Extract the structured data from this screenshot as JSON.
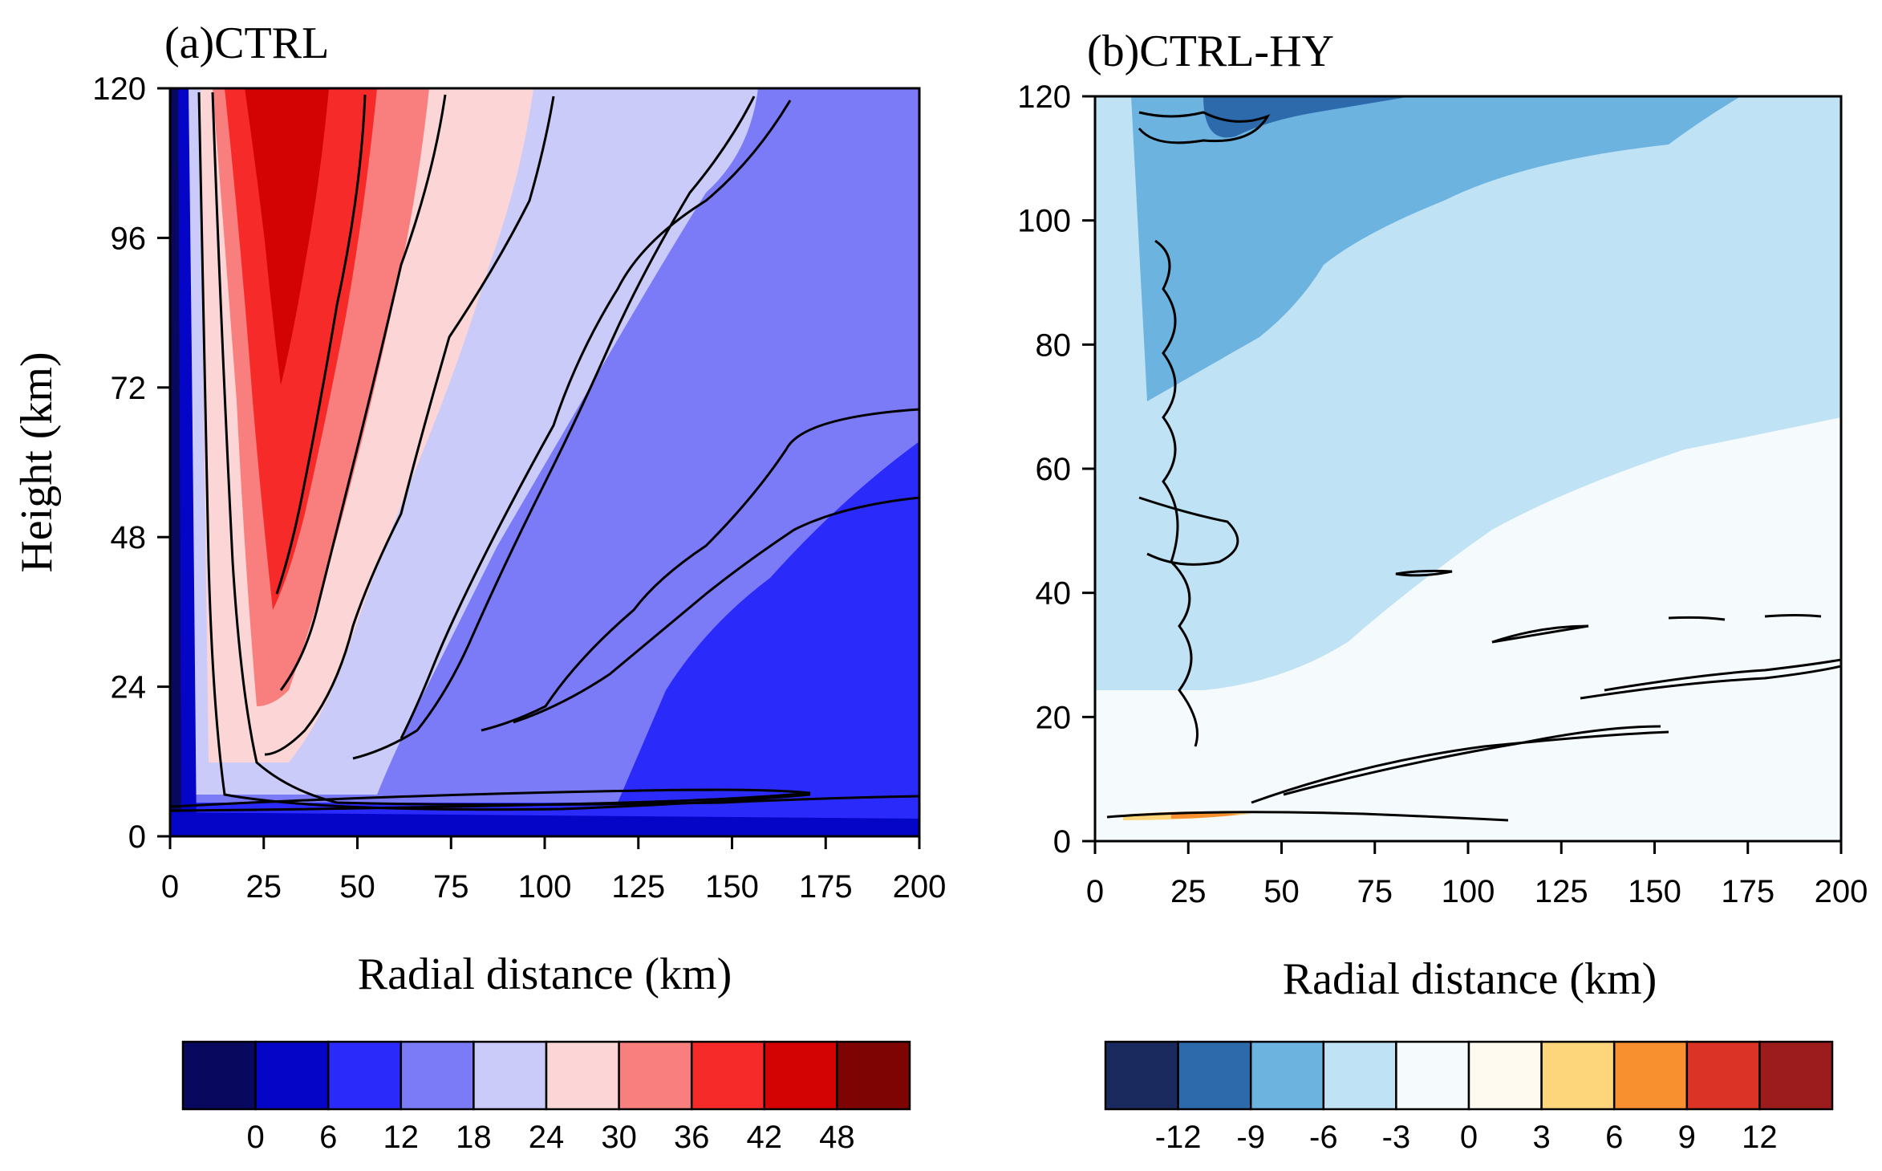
{
  "chart_data": [
    {
      "type": "heatmap",
      "panel": "a",
      "title": "(a)CTRL",
      "xlabel": "Radial distance (km)",
      "ylabel": "Height (km)",
      "xlim": [
        0,
        200
      ],
      "ylim": [
        0,
        120
      ],
      "xticks": [
        0,
        25,
        50,
        75,
        100,
        125,
        150,
        175,
        200
      ],
      "yticks": [
        0,
        24,
        48,
        72,
        96,
        120
      ],
      "colorbar": {
        "labels": [
          0,
          6,
          12,
          18,
          24,
          30,
          36,
          42,
          48
        ],
        "colors": [
          "#08085e",
          "#0505c8",
          "#2a2afa",
          "#7b7bf7",
          "#cbcbf9",
          "#fcd6d6",
          "#f97e7e",
          "#f72a2a",
          "#d40303",
          "#7e0303"
        ]
      },
      "contours": "black contour lines overlaid"
    },
    {
      "type": "heatmap",
      "panel": "b",
      "title": "(b)CTRL-HY",
      "xlabel": "Radial distance (km)",
      "ylabel": "",
      "xlim": [
        0,
        200
      ],
      "ylim": [
        0,
        120
      ],
      "xticks": [
        0,
        25,
        50,
        75,
        100,
        125,
        150,
        175,
        200
      ],
      "yticks": [
        0,
        20,
        40,
        60,
        80,
        100,
        120
      ],
      "colorbar": {
        "labels": [
          -12,
          -9,
          -6,
          -3,
          0,
          3,
          6,
          9,
          12
        ],
        "colors": [
          "#1b2a5e",
          "#2c6aac",
          "#6db3e0",
          "#bfe2f4",
          "#f5fafd",
          "#fffaf0",
          "#fdd57a",
          "#f9902f",
          "#db3326",
          "#9c1c1e"
        ]
      },
      "contours": "black contour lines overlaid"
    }
  ]
}
